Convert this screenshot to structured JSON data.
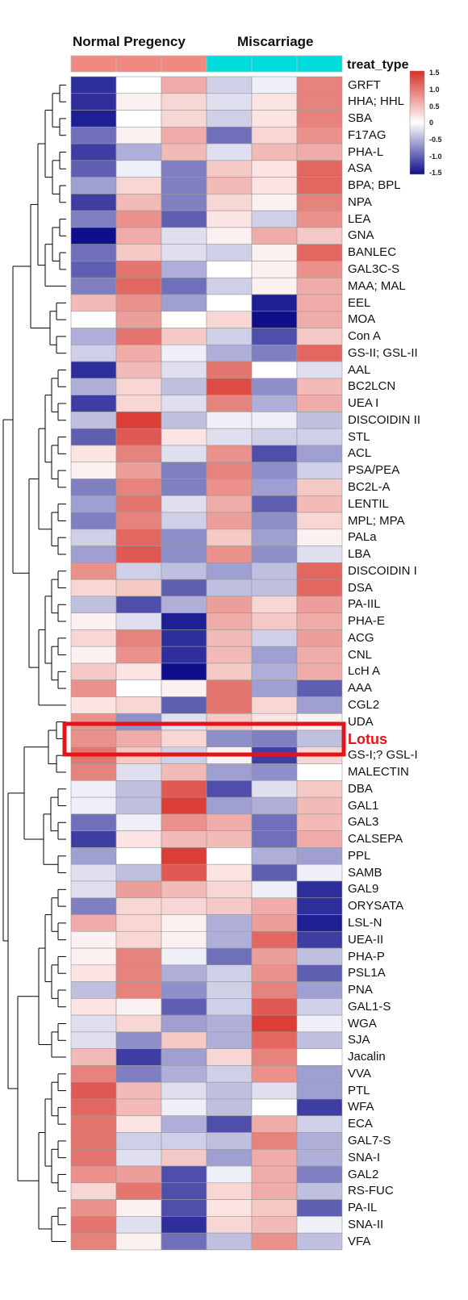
{
  "chart_data": {
    "type": "heatmap",
    "group_labels": [
      "Normal Pregency",
      "Miscarriage"
    ],
    "annotation_label": "treat_type",
    "annotation_colors": [
      "#f08a80",
      "#f08a80",
      "#f08a80",
      "#00dcdc",
      "#00dcdc",
      "#00dcdc"
    ],
    "legend_ticks": [
      "1.5",
      "1.0",
      "0.5",
      "0",
      "-0.5",
      "-1.0",
      "-1.5"
    ],
    "color_range": [
      -1.5,
      1.5
    ],
    "highlight_label": "Lotus",
    "highlight_color": "#e3151b",
    "rows": [
      "GRFT",
      "HHA; HHL",
      "SBA",
      "F17AG",
      "PHA-L",
      "ASA",
      "BPA; BPL",
      "NPA",
      "LEA",
      "GNA",
      "BANLEC",
      "GAL3C-S",
      "MAA; MAL",
      "EEL",
      "MOA",
      "Con A",
      "GS-II; GSL-II",
      "AAL",
      "BC2LCN",
      "UEA I",
      "DISCOIDIN II",
      "STL",
      "ACL",
      "PSA/PEA",
      "BC2L-A",
      "LENTIL",
      "MPL; MPA",
      "PALa",
      "LBA",
      "DISCOIDIN I",
      "DSA",
      "PA-IIL",
      "PHA-E",
      "ACG",
      "CNL",
      "LcH A",
      "AAA",
      "CGL2",
      "UDA",
      "Lotus",
      "GS-I;? GSL-I",
      "MALECTIN",
      "DBA",
      "GAL1",
      "GAL3",
      "CALSEPA",
      "PPL",
      "SAMB",
      "GAL9",
      "ORYSATA",
      "LSL-N",
      "UEA-II",
      "PHA-P",
      "PSL1A",
      "PNA",
      "GAL1-S",
      "WGA",
      "SJA",
      "Jacalin",
      "VVA",
      "PTL",
      "WFA",
      "ECA",
      "GAL7-S",
      "SNA-I",
      "GAL2",
      "RS-FUC",
      "PA-IL",
      "SNA-II",
      "VFA"
    ],
    "values": [
      [
        -1.3,
        0.0,
        0.6,
        -0.3,
        -0.1,
        0.9
      ],
      [
        -1.3,
        0.1,
        0.3,
        -0.2,
        0.2,
        0.9
      ],
      [
        -1.4,
        0.0,
        0.3,
        -0.3,
        0.2,
        0.9
      ],
      [
        -0.9,
        0.1,
        0.6,
        -0.9,
        0.3,
        0.8
      ],
      [
        -1.2,
        -0.5,
        0.5,
        -0.2,
        0.5,
        0.6
      ],
      [
        -1.0,
        -0.1,
        -0.8,
        0.4,
        0.2,
        1.1
      ],
      [
        -0.6,
        0.3,
        -0.8,
        0.5,
        0.2,
        1.1
      ],
      [
        -1.2,
        0.5,
        -0.8,
        0.3,
        0.1,
        0.9
      ],
      [
        -0.8,
        0.8,
        -1.0,
        0.2,
        -0.3,
        0.8
      ],
      [
        -1.5,
        0.6,
        -0.2,
        0.1,
        0.6,
        0.4
      ],
      [
        -0.9,
        0.4,
        -0.2,
        -0.3,
        0.1,
        1.1
      ],
      [
        -1.0,
        1.0,
        -0.5,
        0.0,
        0.1,
        0.8
      ],
      [
        -0.8,
        1.1,
        -0.9,
        -0.3,
        0.1,
        0.6
      ],
      [
        0.5,
        0.8,
        -0.6,
        0.0,
        -1.4,
        0.6
      ],
      [
        0.0,
        0.7,
        0.0,
        0.3,
        -1.5,
        0.6
      ],
      [
        -0.5,
        1.0,
        0.4,
        -0.3,
        -1.1,
        0.4
      ],
      [
        -0.3,
        0.6,
        -0.1,
        -0.5,
        -0.8,
        1.1
      ],
      [
        -1.3,
        0.5,
        -0.2,
        1.0,
        0.0,
        -0.2
      ],
      [
        -0.5,
        0.3,
        -0.4,
        1.3,
        -0.7,
        0.5
      ],
      [
        -1.2,
        0.3,
        -0.2,
        0.9,
        -0.5,
        0.6
      ],
      [
        -0.4,
        1.4,
        -0.4,
        -0.1,
        -0.1,
        -0.4
      ],
      [
        -1.0,
        1.2,
        0.2,
        -0.2,
        -0.3,
        -0.3
      ],
      [
        0.2,
        0.9,
        -0.2,
        0.8,
        -1.1,
        -0.6
      ],
      [
        0.1,
        0.7,
        -0.8,
        0.9,
        -0.7,
        -0.3
      ],
      [
        -0.8,
        0.9,
        -0.8,
        0.8,
        -0.6,
        0.4
      ],
      [
        -0.6,
        1.0,
        -0.2,
        0.6,
        -1.0,
        0.5
      ],
      [
        -0.8,
        0.9,
        -0.3,
        0.7,
        -0.7,
        0.3
      ],
      [
        -0.3,
        1.1,
        -0.7,
        0.4,
        -0.6,
        0.1
      ],
      [
        -0.6,
        1.2,
        -0.7,
        0.8,
        -0.7,
        -0.2
      ],
      [
        0.8,
        -0.3,
        -0.4,
        -0.6,
        -0.4,
        1.1
      ],
      [
        0.3,
        0.4,
        -1.0,
        -0.4,
        -0.4,
        1.1
      ],
      [
        -0.4,
        -1.1,
        -0.5,
        0.7,
        0.3,
        0.7
      ],
      [
        0.1,
        -0.2,
        -1.4,
        0.6,
        0.4,
        0.6
      ],
      [
        0.3,
        0.9,
        -1.3,
        0.5,
        -0.3,
        0.7
      ],
      [
        0.1,
        0.8,
        -1.3,
        0.5,
        -0.6,
        0.6
      ],
      [
        0.4,
        0.2,
        -1.5,
        0.4,
        -0.5,
        0.6
      ],
      [
        0.8,
        0.0,
        0.1,
        1.0,
        -0.6,
        -1.0
      ],
      [
        0.2,
        0.3,
        -1.0,
        1.0,
        0.3,
        -0.6
      ],
      [
        0.8,
        -0.7,
        -0.2,
        0.4,
        0.2,
        0.1
      ],
      [
        0.8,
        0.6,
        0.3,
        -0.7,
        -0.8,
        -0.4
      ],
      [
        1.0,
        0.4,
        -0.3,
        0.1,
        -1.2,
        0.3
      ],
      [
        0.9,
        -0.2,
        0.5,
        -0.6,
        -0.7,
        0.0
      ],
      [
        -0.1,
        -0.4,
        1.2,
        -1.1,
        -0.2,
        0.4
      ],
      [
        -0.1,
        -0.4,
        1.4,
        -0.6,
        -0.5,
        0.5
      ],
      [
        -0.9,
        -0.1,
        0.8,
        0.6,
        -0.9,
        0.5
      ],
      [
        -1.2,
        0.2,
        0.5,
        0.5,
        -0.9,
        0.6
      ],
      [
        -0.6,
        0.0,
        1.4,
        0.0,
        -0.5,
        -0.6
      ],
      [
        -0.2,
        -0.4,
        1.2,
        0.2,
        -1.0,
        -0.1
      ],
      [
        -0.2,
        0.7,
        0.5,
        0.3,
        -0.1,
        -1.3
      ],
      [
        -0.8,
        0.3,
        0.3,
        0.4,
        0.6,
        -1.3
      ],
      [
        0.6,
        0.3,
        0.1,
        -0.5,
        0.7,
        -1.4
      ],
      [
        0.1,
        0.3,
        0.1,
        -0.5,
        1.1,
        -1.2
      ],
      [
        0.1,
        0.9,
        -0.1,
        -0.9,
        0.7,
        -0.4
      ],
      [
        0.2,
        0.9,
        -0.5,
        -0.3,
        0.8,
        -1.0
      ],
      [
        -0.4,
        0.9,
        -0.7,
        -0.3,
        0.9,
        -0.6
      ],
      [
        0.2,
        0.1,
        -1.0,
        -0.3,
        1.2,
        -0.3
      ],
      [
        -0.2,
        0.3,
        -0.6,
        -0.5,
        1.4,
        -0.1
      ],
      [
        -0.2,
        -0.7,
        0.4,
        -0.5,
        1.1,
        -0.4
      ],
      [
        0.5,
        -1.2,
        -0.6,
        0.3,
        0.9,
        0.0
      ],
      [
        0.9,
        -0.8,
        -0.5,
        -0.3,
        0.8,
        -0.6
      ],
      [
        1.2,
        0.5,
        -0.2,
        -0.4,
        -0.2,
        -0.6
      ],
      [
        1.1,
        0.5,
        -0.1,
        -0.4,
        0.0,
        -1.2
      ],
      [
        1.0,
        0.2,
        -0.5,
        -1.1,
        0.6,
        -0.3
      ],
      [
        1.0,
        -0.3,
        -0.3,
        -0.4,
        0.9,
        -0.5
      ],
      [
        1.0,
        -0.2,
        0.4,
        -0.6,
        0.6,
        -0.5
      ],
      [
        0.8,
        0.7,
        -1.1,
        -0.1,
        0.6,
        -0.8
      ],
      [
        0.3,
        1.0,
        -1.1,
        0.3,
        0.6,
        -0.4
      ],
      [
        0.8,
        0.1,
        -1.1,
        0.2,
        0.4,
        -1.0
      ],
      [
        1.0,
        -0.2,
        -1.3,
        0.3,
        0.5,
        -0.1
      ],
      [
        0.9,
        0.1,
        -0.9,
        -0.4,
        0.8,
        -0.4
      ]
    ]
  }
}
